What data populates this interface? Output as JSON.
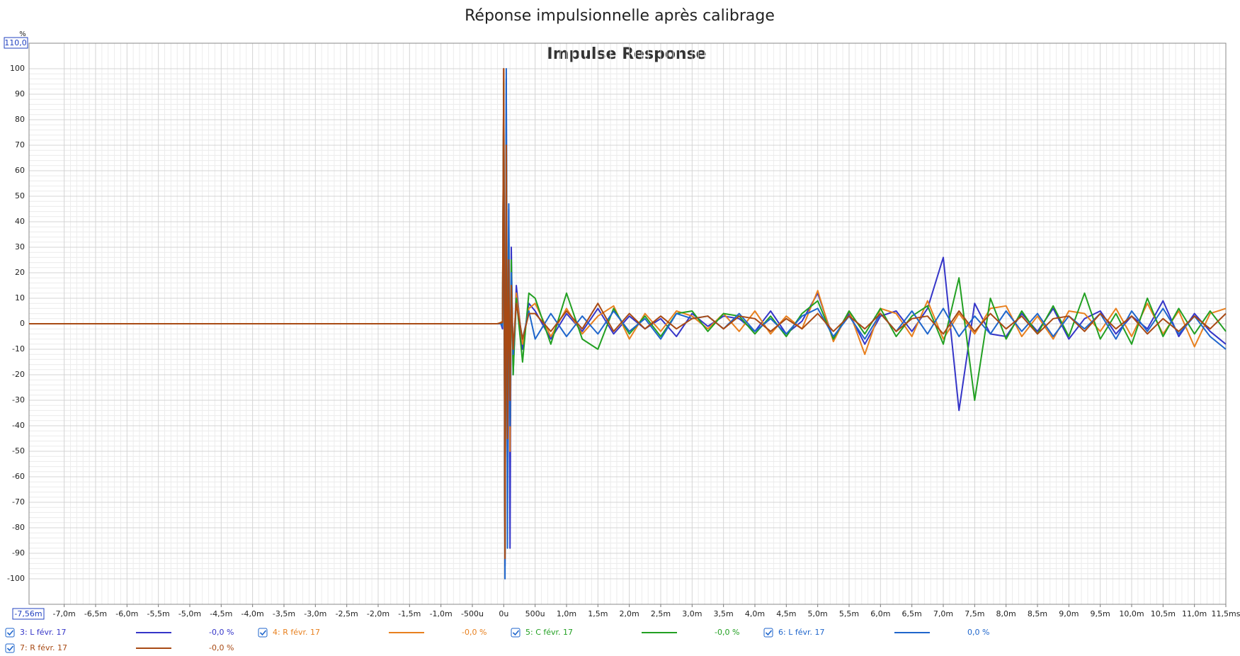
{
  "chart_data": {
    "type": "line",
    "title": "Réponse impulsionnelle après calibrage",
    "subtitle": "Impulse Response",
    "y_unit": "%",
    "y_max_label": "110,0",
    "x_min_label": "-7,56m",
    "xlim": [
      -7.56,
      11.5
    ],
    "ylim": [
      -110,
      110
    ],
    "grid": true,
    "yticks": [
      100,
      90,
      80,
      70,
      60,
      50,
      40,
      30,
      20,
      10,
      0,
      -10,
      -20,
      -30,
      -40,
      -50,
      -60,
      -70,
      -80,
      -90,
      -100
    ],
    "xticks": [
      {
        "value": -7.0,
        "label": "-7,0m"
      },
      {
        "value": -6.5,
        "label": "-6,5m"
      },
      {
        "value": -6.0,
        "label": "-6,0m"
      },
      {
        "value": -5.5,
        "label": "-5,5m"
      },
      {
        "value": -5.0,
        "label": "-5,0m"
      },
      {
        "value": -4.5,
        "label": "-4,5m"
      },
      {
        "value": -4.0,
        "label": "-4,0m"
      },
      {
        "value": -3.5,
        "label": "-3,5m"
      },
      {
        "value": -3.0,
        "label": "-3,0m"
      },
      {
        "value": -2.5,
        "label": "-2,5m"
      },
      {
        "value": -2.0,
        "label": "-2,0m"
      },
      {
        "value": -1.5,
        "label": "-1,5m"
      },
      {
        "value": -1.0,
        "label": "-1,0m"
      },
      {
        "value": -0.5,
        "label": "-500u"
      },
      {
        "value": 0,
        "label": "0u"
      },
      {
        "value": 0.5,
        "label": "500u"
      },
      {
        "value": 1.0,
        "label": "1,0m"
      },
      {
        "value": 1.5,
        "label": "1,5m"
      },
      {
        "value": 2.0,
        "label": "2,0m"
      },
      {
        "value": 2.5,
        "label": "2,5m"
      },
      {
        "value": 3.0,
        "label": "3,0m"
      },
      {
        "value": 3.5,
        "label": "3,5m"
      },
      {
        "value": 4.0,
        "label": "4,0m"
      },
      {
        "value": 4.5,
        "label": "4,5m"
      },
      {
        "value": 5.0,
        "label": "5,0m"
      },
      {
        "value": 5.5,
        "label": "5,5m"
      },
      {
        "value": 6.0,
        "label": "6,0m"
      },
      {
        "value": 6.5,
        "label": "6,5m"
      },
      {
        "value": 7.0,
        "label": "7,0m"
      },
      {
        "value": 7.5,
        "label": "7,5m"
      },
      {
        "value": 8.0,
        "label": "8,0m"
      },
      {
        "value": 8.5,
        "label": "8,5m"
      },
      {
        "value": 9.0,
        "label": "9,0m"
      },
      {
        "value": 9.5,
        "label": "9,5m"
      },
      {
        "value": 10.0,
        "label": "10,0m"
      },
      {
        "value": 10.5,
        "label": "10,5m"
      },
      {
        "value": 11.0,
        "label": "11,0m"
      },
      {
        "value": 11.5,
        "label": "11,5ms"
      }
    ],
    "x": [
      -7.56,
      -0.5,
      -0.1,
      -0.05,
      -0.02,
      0,
      0.02,
      0.04,
      0.06,
      0.08,
      0.1,
      0.12,
      0.15,
      0.2,
      0.3,
      0.4,
      0.5,
      0.75,
      1.0,
      1.25,
      1.5,
      1.75,
      2.0,
      2.25,
      2.5,
      2.75,
      3.0,
      3.25,
      3.5,
      3.75,
      4.0,
      4.25,
      4.5,
      4.75,
      5.0,
      5.25,
      5.5,
      5.75,
      6.0,
      6.25,
      6.5,
      6.75,
      7.0,
      7.25,
      7.5,
      7.75,
      8.0,
      8.25,
      8.5,
      8.75,
      9.0,
      9.25,
      9.5,
      9.75,
      10.0,
      10.25,
      10.5,
      10.75,
      11.0,
      11.25,
      11.5
    ],
    "series": [
      {
        "name": "3: L févr. 17",
        "color": "#3535c8",
        "cursor_value": "-0,0 %",
        "values": [
          0,
          0,
          0,
          0.3,
          -2,
          100,
          -95,
          96,
          -60,
          45,
          -88,
          30,
          -20,
          15,
          -10,
          8,
          5,
          -6,
          4,
          -3,
          6,
          -4,
          3,
          -2,
          2,
          -5,
          4,
          -1,
          3,
          2,
          -3,
          5,
          -4,
          1,
          12,
          -6,
          4,
          -8,
          3,
          5,
          -3,
          6,
          26,
          -34,
          8,
          -4,
          -5,
          4,
          -3,
          6,
          -6,
          2,
          5,
          -4,
          3,
          -2,
          9,
          -5,
          4,
          -3,
          -8
        ]
      },
      {
        "name": "4: R févr. 17",
        "color": "#e8801e",
        "cursor_value": "-0,0 %",
        "values": [
          0,
          0,
          0,
          0.5,
          1,
          100,
          -93,
          60,
          -40,
          30,
          -50,
          20,
          -15,
          12,
          -8,
          6,
          8,
          -5,
          6,
          -4,
          3,
          7,
          -6,
          4,
          -3,
          5,
          3,
          -2,
          4,
          -3,
          5,
          -4,
          3,
          -2,
          13,
          -7,
          5,
          -12,
          6,
          4,
          -5,
          9,
          -6,
          4,
          -4,
          6,
          7,
          -5,
          3,
          -6,
          5,
          4,
          -3,
          6,
          -5,
          8,
          -4,
          5,
          -9,
          4,
          6
        ]
      },
      {
        "name": "5: C févr. 17",
        "color": "#22a022",
        "cursor_value": "-0,0 %",
        "values": [
          0,
          0,
          0,
          0.2,
          0,
          95,
          -90,
          80,
          -50,
          38,
          -37,
          25,
          -20,
          10,
          -15,
          12,
          10,
          -8,
          12,
          -6,
          -10,
          6,
          -4,
          3,
          -5,
          4,
          5,
          -3,
          4,
          3,
          -4,
          3,
          -5,
          4,
          9,
          -6,
          5,
          -4,
          6,
          -5,
          3,
          7,
          -8,
          18,
          -30,
          10,
          -6,
          5,
          -4,
          7,
          -5,
          12,
          -6,
          4,
          -8,
          10,
          -5,
          6,
          -4,
          5,
          -3
        ]
      },
      {
        "name": "6: L févr. 17",
        "color": "#1f66cc",
        "cursor_value": "0,0 %",
        "values": [
          0,
          0,
          0,
          0,
          -1,
          90,
          -100,
          100,
          -88,
          47,
          -40,
          20,
          -12,
          8,
          -6,
          5,
          -6,
          4,
          -5,
          3,
          -4,
          5,
          -3,
          2,
          -6,
          4,
          2,
          3,
          -2,
          4,
          -3,
          2,
          -4,
          3,
          6,
          -5,
          3,
          -6,
          4,
          -3,
          5,
          -4,
          6,
          -5,
          3,
          -4,
          5,
          -3,
          4,
          -5,
          3,
          -2,
          4,
          -6,
          5,
          -3,
          6,
          -4,
          3,
          -5,
          -10
        ]
      },
      {
        "name": "7: R févr. 17",
        "color": "#a84a14",
        "cursor_value": "-0,0 %",
        "values": [
          0,
          0,
          0,
          0.3,
          0.5,
          100,
          -92,
          70,
          -45,
          25,
          -30,
          15,
          -10,
          8,
          -6,
          4,
          4,
          -3,
          5,
          -2,
          8,
          -3,
          4,
          -2,
          3,
          -2,
          2,
          3,
          -2,
          3,
          2,
          -3,
          2,
          -2,
          4,
          -3,
          3,
          -2,
          4,
          -3,
          2,
          3,
          -4,
          5,
          -3,
          4,
          -2,
          3,
          -4,
          2,
          3,
          -3,
          4,
          -2,
          3,
          -4,
          2,
          -3,
          3,
          -2,
          4
        ]
      }
    ]
  }
}
